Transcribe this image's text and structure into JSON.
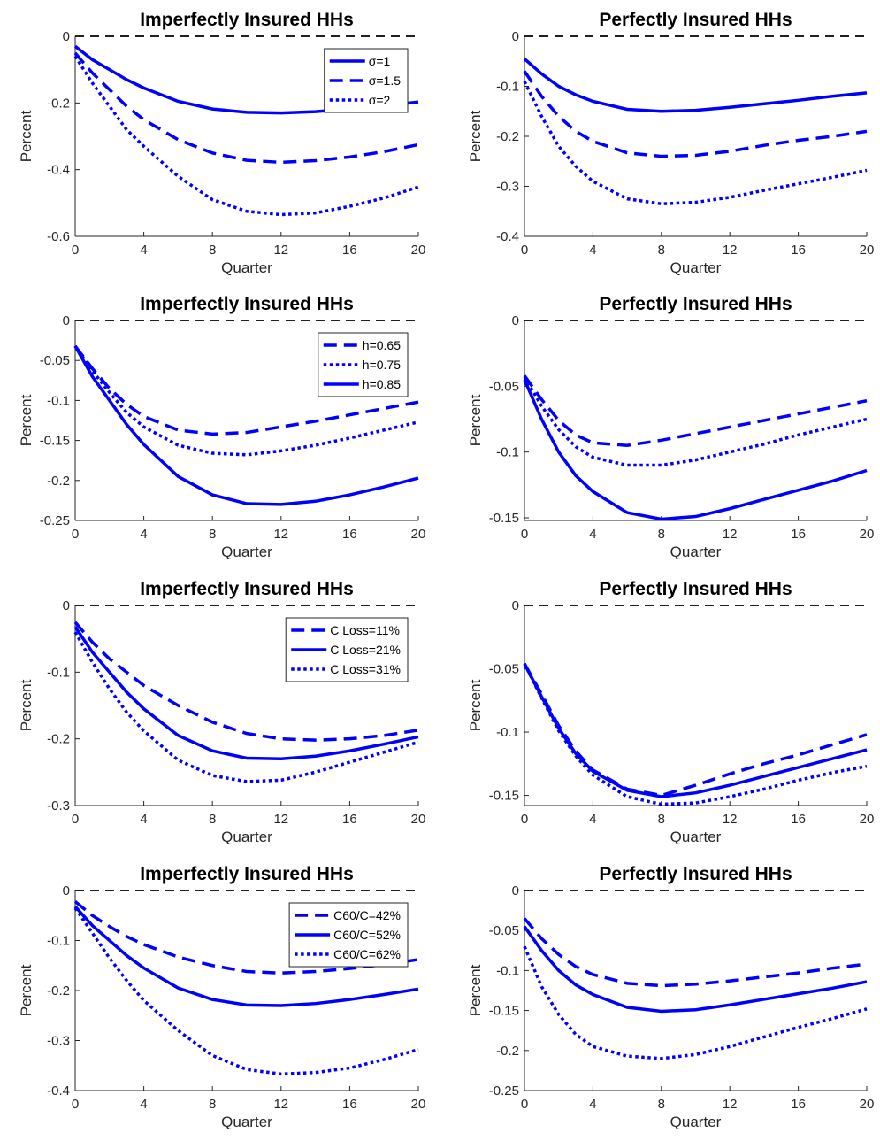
{
  "chart_data": [
    {
      "type": "line",
      "title": "Imperfectly Insured HHs",
      "xlabel": "Quarter",
      "ylabel": "Percent",
      "x": [
        0,
        1,
        2,
        3,
        4,
        6,
        8,
        10,
        12,
        14,
        16,
        18,
        20
      ],
      "xlim": [
        0,
        20
      ],
      "xticks": [
        0,
        4,
        8,
        12,
        16,
        20
      ],
      "ylim": [
        -0.6,
        0
      ],
      "yticks": [
        -0.6,
        -0.4,
        -0.2,
        0
      ],
      "hline": 0,
      "legend": "upper right",
      "series": [
        {
          "name": "σ=1",
          "color": "#0000ff",
          "line_style": "solid",
          "values": [
            -0.03,
            -0.07,
            -0.1,
            -0.13,
            -0.155,
            -0.195,
            -0.218,
            -0.228,
            -0.23,
            -0.226,
            -0.218,
            -0.208,
            -0.197
          ]
        },
        {
          "name": "σ=1.5",
          "color": "#0000ff",
          "line_style": "dashed",
          "values": [
            -0.05,
            -0.11,
            -0.16,
            -0.21,
            -0.25,
            -0.31,
            -0.35,
            -0.372,
            -0.378,
            -0.373,
            -0.362,
            -0.346,
            -0.325
          ]
        },
        {
          "name": "σ=2",
          "color": "#0000ff",
          "line_style": "dotted",
          "values": [
            -0.06,
            -0.14,
            -0.21,
            -0.28,
            -0.33,
            -0.42,
            -0.49,
            -0.525,
            -0.535,
            -0.53,
            -0.51,
            -0.485,
            -0.452
          ]
        }
      ]
    },
    {
      "type": "line",
      "title": "Perfectly Insured HHs",
      "xlabel": "Quarter",
      "ylabel": "Percent",
      "x": [
        0,
        1,
        2,
        3,
        4,
        6,
        8,
        10,
        12,
        14,
        16,
        18,
        20
      ],
      "xlim": [
        0,
        20
      ],
      "xticks": [
        0,
        4,
        8,
        12,
        16,
        20
      ],
      "ylim": [
        -0.4,
        0
      ],
      "yticks": [
        -0.4,
        -0.3,
        -0.2,
        -0.1,
        0
      ],
      "hline": 0,
      "series": [
        {
          "color": "#0000ff",
          "line_style": "solid",
          "values": [
            -0.045,
            -0.075,
            -0.1,
            -0.117,
            -0.13,
            -0.146,
            -0.15,
            -0.148,
            -0.142,
            -0.135,
            -0.128,
            -0.12,
            -0.113
          ]
        },
        {
          "color": "#0000ff",
          "line_style": "dashed",
          "values": [
            -0.07,
            -0.12,
            -0.16,
            -0.19,
            -0.21,
            -0.233,
            -0.24,
            -0.238,
            -0.23,
            -0.218,
            -0.208,
            -0.2,
            -0.19
          ]
        },
        {
          "color": "#0000ff",
          "line_style": "dotted",
          "values": [
            -0.09,
            -0.16,
            -0.22,
            -0.26,
            -0.29,
            -0.325,
            -0.335,
            -0.332,
            -0.322,
            -0.308,
            -0.295,
            -0.282,
            -0.268
          ]
        }
      ]
    },
    {
      "type": "line",
      "title": "Imperfectly Insured HHs",
      "xlabel": "Quarter",
      "ylabel": "Percent",
      "x": [
        0,
        1,
        2,
        3,
        4,
        6,
        8,
        10,
        12,
        14,
        16,
        18,
        20
      ],
      "xlim": [
        0,
        20
      ],
      "xticks": [
        0,
        4,
        8,
        12,
        16,
        20
      ],
      "ylim": [
        -0.25,
        0
      ],
      "yticks": [
        -0.25,
        -0.2,
        -0.15,
        -0.1,
        -0.05,
        0
      ],
      "hline": 0,
      "legend": "upper right",
      "series": [
        {
          "name": "h=0.65",
          "color": "#0000ff",
          "line_style": "dashed",
          "values": [
            -0.032,
            -0.06,
            -0.085,
            -0.105,
            -0.12,
            -0.137,
            -0.142,
            -0.14,
            -0.133,
            -0.126,
            -0.118,
            -0.11,
            -0.102
          ]
        },
        {
          "name": "h=0.75",
          "color": "#0000ff",
          "line_style": "dotted",
          "values": [
            -0.032,
            -0.063,
            -0.09,
            -0.115,
            -0.133,
            -0.156,
            -0.166,
            -0.168,
            -0.163,
            -0.156,
            -0.147,
            -0.137,
            -0.127
          ]
        },
        {
          "name": "h=0.85",
          "color": "#0000ff",
          "line_style": "solid",
          "values": [
            -0.032,
            -0.07,
            -0.1,
            -0.13,
            -0.155,
            -0.195,
            -0.218,
            -0.229,
            -0.23,
            -0.226,
            -0.218,
            -0.208,
            -0.197
          ]
        }
      ]
    },
    {
      "type": "line",
      "title": "Perfectly Insured HHs",
      "xlabel": "Quarter",
      "ylabel": "Percent",
      "x": [
        0,
        1,
        2,
        3,
        4,
        6,
        8,
        10,
        12,
        14,
        16,
        18,
        20
      ],
      "xlim": [
        0,
        20
      ],
      "xticks": [
        0,
        4,
        8,
        12,
        16,
        20
      ],
      "ylim": [
        -0.152,
        0
      ],
      "yticks": [
        -0.15,
        -0.1,
        -0.05,
        0
      ],
      "hline": 0,
      "series": [
        {
          "color": "#0000ff",
          "line_style": "dashed",
          "values": [
            -0.042,
            -0.06,
            -0.076,
            -0.087,
            -0.093,
            -0.095,
            -0.091,
            -0.086,
            -0.081,
            -0.076,
            -0.071,
            -0.066,
            -0.061
          ]
        },
        {
          "color": "#0000ff",
          "line_style": "dotted",
          "values": [
            -0.043,
            -0.065,
            -0.083,
            -0.096,
            -0.104,
            -0.11,
            -0.11,
            -0.106,
            -0.1,
            -0.094,
            -0.087,
            -0.081,
            -0.075
          ]
        },
        {
          "color": "#0000ff",
          "line_style": "solid",
          "values": [
            -0.045,
            -0.075,
            -0.1,
            -0.118,
            -0.13,
            -0.146,
            -0.151,
            -0.149,
            -0.143,
            -0.136,
            -0.129,
            -0.122,
            -0.114
          ]
        }
      ]
    },
    {
      "type": "line",
      "title": "Imperfectly Insured HHs",
      "xlabel": "Quarter",
      "ylabel": "Percent",
      "x": [
        0,
        1,
        2,
        3,
        4,
        6,
        8,
        10,
        12,
        14,
        16,
        18,
        20
      ],
      "xlim": [
        0,
        20
      ],
      "xticks": [
        0,
        4,
        8,
        12,
        16,
        20
      ],
      "ylim": [
        -0.3,
        0
      ],
      "yticks": [
        -0.3,
        -0.2,
        -0.1,
        0
      ],
      "hline": 0,
      "legend": "upper right",
      "series": [
        {
          "name": "C Loss=11%",
          "color": "#0000ff",
          "line_style": "dashed",
          "values": [
            -0.025,
            -0.055,
            -0.08,
            -0.1,
            -0.12,
            -0.15,
            -0.175,
            -0.192,
            -0.2,
            -0.202,
            -0.2,
            -0.195,
            -0.187
          ]
        },
        {
          "name": "C Loss=21%",
          "color": "#0000ff",
          "line_style": "solid",
          "values": [
            -0.032,
            -0.07,
            -0.1,
            -0.13,
            -0.155,
            -0.195,
            -0.218,
            -0.229,
            -0.23,
            -0.226,
            -0.218,
            -0.208,
            -0.197
          ]
        },
        {
          "name": "C Loss=31%",
          "color": "#0000ff",
          "line_style": "dotted",
          "values": [
            -0.04,
            -0.085,
            -0.125,
            -0.16,
            -0.188,
            -0.232,
            -0.255,
            -0.264,
            -0.262,
            -0.25,
            -0.235,
            -0.22,
            -0.205
          ]
        }
      ]
    },
    {
      "type": "line",
      "title": "Perfectly Insured HHs",
      "xlabel": "Quarter",
      "ylabel": "Percent",
      "x": [
        0,
        1,
        2,
        3,
        4,
        6,
        8,
        10,
        12,
        14,
        16,
        18,
        20
      ],
      "xlim": [
        0,
        20
      ],
      "xticks": [
        0,
        4,
        8,
        12,
        16,
        20
      ],
      "ylim": [
        -0.158,
        0
      ],
      "yticks": [
        -0.15,
        -0.1,
        -0.05,
        0
      ],
      "hline": 0,
      "series": [
        {
          "color": "#0000ff",
          "line_style": "dashed",
          "values": [
            -0.046,
            -0.07,
            -0.095,
            -0.115,
            -0.13,
            -0.145,
            -0.15,
            -0.142,
            -0.133,
            -0.125,
            -0.118,
            -0.11,
            -0.102
          ]
        },
        {
          "color": "#0000ff",
          "line_style": "solid",
          "values": [
            -0.046,
            -0.072,
            -0.097,
            -0.117,
            -0.131,
            -0.146,
            -0.151,
            -0.148,
            -0.142,
            -0.135,
            -0.128,
            -0.121,
            -0.114
          ]
        },
        {
          "color": "#0000ff",
          "line_style": "dotted",
          "values": [
            -0.046,
            -0.073,
            -0.099,
            -0.119,
            -0.134,
            -0.151,
            -0.157,
            -0.156,
            -0.151,
            -0.145,
            -0.138,
            -0.132,
            -0.127
          ]
        }
      ]
    },
    {
      "type": "line",
      "title": "Imperfectly Insured HHs",
      "xlabel": "Quarter",
      "ylabel": "Percent",
      "x": [
        0,
        1,
        2,
        3,
        4,
        6,
        8,
        10,
        12,
        14,
        16,
        18,
        20
      ],
      "xlim": [
        0,
        20
      ],
      "xticks": [
        0,
        4,
        8,
        12,
        16,
        20
      ],
      "ylim": [
        -0.4,
        0
      ],
      "yticks": [
        -0.4,
        -0.3,
        -0.2,
        -0.1,
        0
      ],
      "hline": 0,
      "legend": "upper right",
      "series": [
        {
          "name": "C60/C=42%",
          "color": "#0000ff",
          "line_style": "dashed",
          "values": [
            -0.022,
            -0.05,
            -0.072,
            -0.092,
            -0.108,
            -0.133,
            -0.15,
            -0.162,
            -0.165,
            -0.162,
            -0.156,
            -0.148,
            -0.138
          ]
        },
        {
          "name": "C60/C=52%",
          "color": "#0000ff",
          "line_style": "solid",
          "values": [
            -0.032,
            -0.07,
            -0.1,
            -0.13,
            -0.155,
            -0.195,
            -0.218,
            -0.229,
            -0.23,
            -0.226,
            -0.218,
            -0.208,
            -0.197
          ]
        },
        {
          "name": "C60/C=62%",
          "color": "#0000ff",
          "line_style": "dotted",
          "values": [
            -0.035,
            -0.085,
            -0.135,
            -0.18,
            -0.22,
            -0.28,
            -0.33,
            -0.358,
            -0.367,
            -0.364,
            -0.355,
            -0.338,
            -0.318
          ]
        }
      ]
    },
    {
      "type": "line",
      "title": "Perfectly Insured HHs",
      "xlabel": "Quarter",
      "ylabel": "Percent",
      "x": [
        0,
        1,
        2,
        3,
        4,
        6,
        8,
        10,
        12,
        14,
        16,
        18,
        20
      ],
      "xlim": [
        0,
        20
      ],
      "xticks": [
        0,
        4,
        8,
        12,
        16,
        20
      ],
      "ylim": [
        -0.25,
        0
      ],
      "yticks": [
        -0.25,
        -0.2,
        -0.15,
        -0.1,
        -0.05,
        0
      ],
      "hline": 0,
      "series": [
        {
          "color": "#0000ff",
          "line_style": "dashed",
          "values": [
            -0.035,
            -0.06,
            -0.08,
            -0.095,
            -0.105,
            -0.116,
            -0.119,
            -0.117,
            -0.113,
            -0.108,
            -0.103,
            -0.097,
            -0.092
          ]
        },
        {
          "color": "#0000ff",
          "line_style": "solid",
          "values": [
            -0.045,
            -0.075,
            -0.1,
            -0.118,
            -0.13,
            -0.146,
            -0.151,
            -0.149,
            -0.143,
            -0.136,
            -0.129,
            -0.122,
            -0.114
          ]
        },
        {
          "color": "#0000ff",
          "line_style": "dotted",
          "values": [
            -0.07,
            -0.12,
            -0.155,
            -0.18,
            -0.195,
            -0.207,
            -0.21,
            -0.205,
            -0.195,
            -0.183,
            -0.171,
            -0.16,
            -0.148
          ]
        }
      ]
    }
  ]
}
